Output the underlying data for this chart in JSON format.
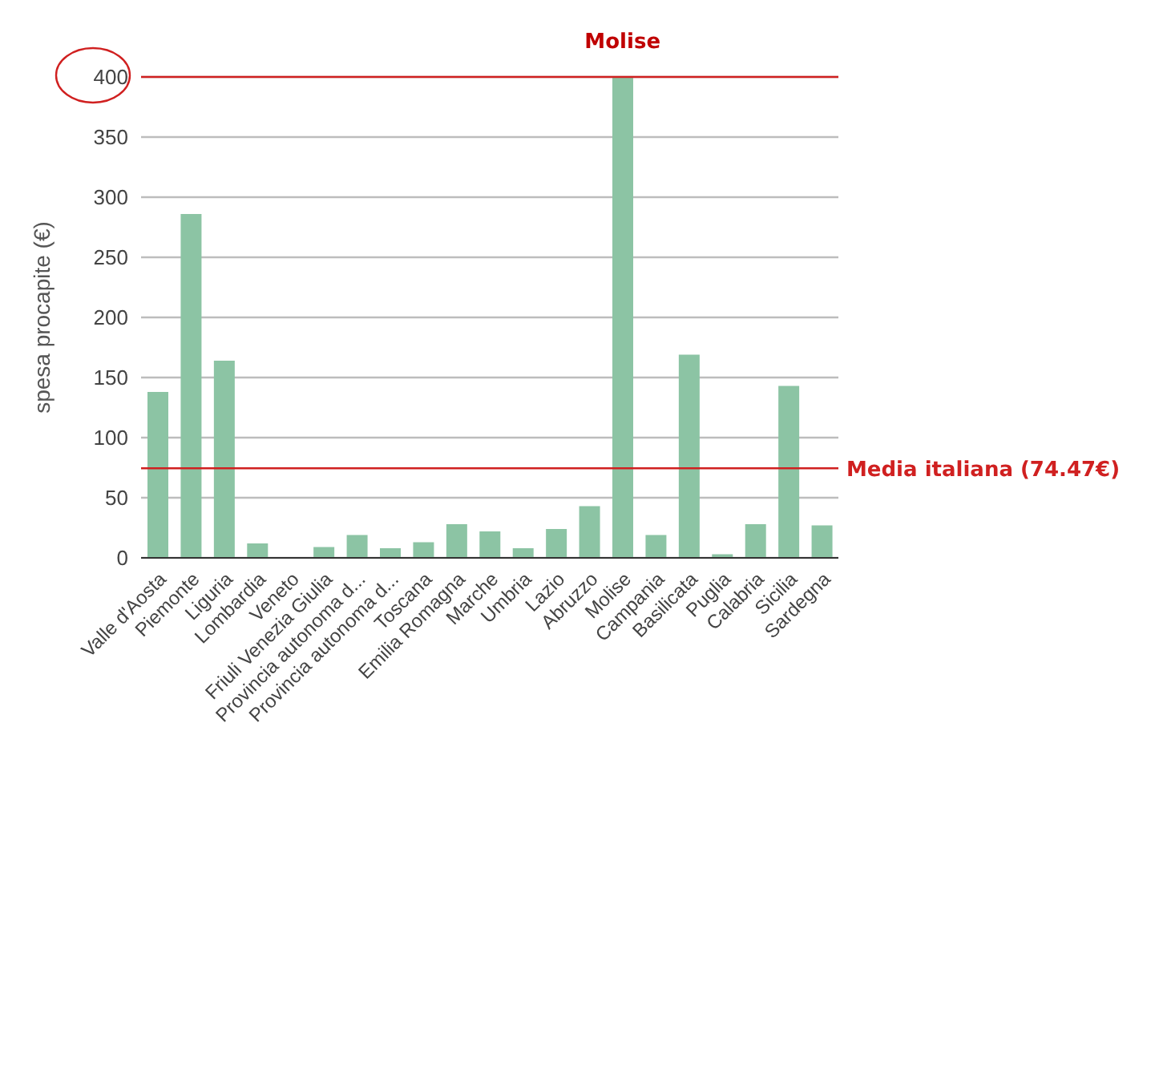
{
  "chart_data": {
    "type": "bar",
    "ylabel": "spesa procapite (€)",
    "categories": [
      "Valle d'Aosta",
      "Piemonte",
      "Liguria",
      "Lombardia",
      "Veneto",
      "Friuli Venezia Giulia",
      "Provincia autonoma d...",
      "Provincia autonoma d...",
      "Toscana",
      "Emilia Romagna",
      "Marche",
      "Umbria",
      "Lazio",
      "Abruzzo",
      "Molise",
      "Campania",
      "Basilicata",
      "Puglia",
      "Calabria",
      "Sicilia",
      "Sardegna"
    ],
    "values": [
      138,
      286,
      164,
      12,
      0,
      9,
      19,
      8,
      13,
      28,
      22,
      8,
      24,
      43,
      400,
      19,
      169,
      3,
      28,
      143,
      27
    ],
    "color": "#8cc4a4",
    "ylim": [
      0,
      400
    ],
    "yticks": [
      0,
      50,
      100,
      150,
      200,
      250,
      300,
      350,
      400
    ],
    "grid": "y",
    "ref_lines": [
      {
        "axis": "y",
        "value": 74.47,
        "label": "Media italiana (74.47€)",
        "color": "#d02020"
      },
      {
        "axis": "y",
        "value": 400,
        "color": "#d02020"
      }
    ],
    "annotations": [
      {
        "text": "Molise",
        "x": "Molise",
        "y": 400
      }
    ]
  }
}
